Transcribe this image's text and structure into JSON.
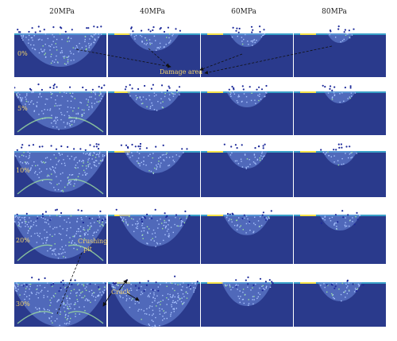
{
  "columns": [
    "20MPa",
    "40MPa",
    "60MPa",
    "80MPa"
  ],
  "rows": [
    "0%",
    "5%",
    "10%",
    "20%",
    "30%"
  ],
  "annotations": {
    "damage_area": "Damage area",
    "crushing_pit_1": "Crushing",
    "crushing_pit_2": "pit",
    "crack": "Crack"
  },
  "colors": {
    "background_field": "#2a3a8c",
    "damage_mesh": "#6f8fe0",
    "edge_highlight": "#f5e34a",
    "label": "#f2d36a"
  }
}
